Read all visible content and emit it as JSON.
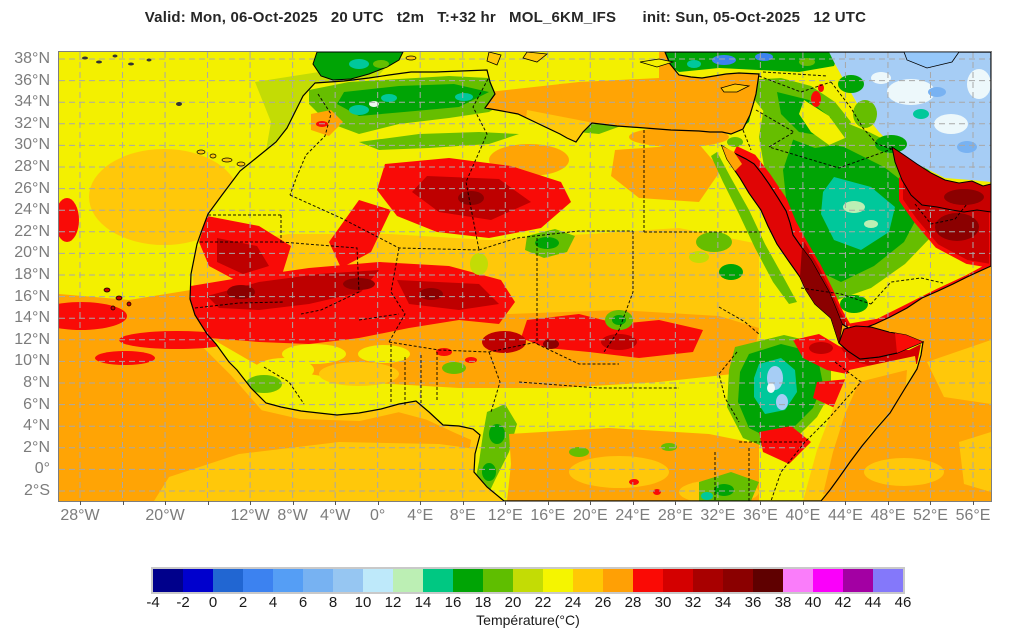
{
  "header": {
    "title": "Valid: Mon, 06-Oct-2025   20 UTC   t2m   T:+32 hr   MOL_6KM_IFS      init: Sun, 05-Oct-2025   12 UTC",
    "valid_time": "Mon, 06-Oct-2025 20 UTC",
    "variable": "t2m",
    "lead_time": "T:+32 hr",
    "model": "MOL_6KM_IFS",
    "init_time": "Sun, 05-Oct-2025 12 UTC"
  },
  "map": {
    "lat_ticks": [
      {
        "deg": 38,
        "label": "38°N"
      },
      {
        "deg": 36,
        "label": "36°N"
      },
      {
        "deg": 34,
        "label": "34°N"
      },
      {
        "deg": 32,
        "label": "32°N"
      },
      {
        "deg": 30,
        "label": "30°N"
      },
      {
        "deg": 28,
        "label": "28°N"
      },
      {
        "deg": 26,
        "label": "26°N"
      },
      {
        "deg": 24,
        "label": "24°N"
      },
      {
        "deg": 22,
        "label": "22°N"
      },
      {
        "deg": 20,
        "label": "20°N"
      },
      {
        "deg": 18,
        "label": "18°N"
      },
      {
        "deg": 16,
        "label": "16°N"
      },
      {
        "deg": 14,
        "label": "14°N"
      },
      {
        "deg": 12,
        "label": "12°N"
      },
      {
        "deg": 10,
        "label": "10°N"
      },
      {
        "deg": 8,
        "label": "8°N"
      },
      {
        "deg": 6,
        "label": "6°N"
      },
      {
        "deg": 4,
        "label": "4°N"
      },
      {
        "deg": 2,
        "label": "2°N"
      },
      {
        "deg": 0,
        "label": "0°"
      },
      {
        "deg": -2,
        "label": "2°S"
      }
    ],
    "lon_ticks": [
      {
        "deg": -28,
        "label": "28°W"
      },
      {
        "deg": -20,
        "label": "20°W"
      },
      {
        "deg": -12,
        "label": "12°W"
      },
      {
        "deg": -8,
        "label": "8°W"
      },
      {
        "deg": -4,
        "label": "4°W"
      },
      {
        "deg": 0,
        "label": "0°"
      },
      {
        "deg": 4,
        "label": "4°E"
      },
      {
        "deg": 8,
        "label": "8°E"
      },
      {
        "deg": 12,
        "label": "12°E"
      },
      {
        "deg": 16,
        "label": "16°E"
      },
      {
        "deg": 20,
        "label": "20°E"
      },
      {
        "deg": 24,
        "label": "24°E"
      },
      {
        "deg": 28,
        "label": "28°E"
      },
      {
        "deg": 32,
        "label": "32°E"
      },
      {
        "deg": 36,
        "label": "36°E"
      },
      {
        "deg": 40,
        "label": "40°E"
      },
      {
        "deg": 44,
        "label": "44°E"
      },
      {
        "deg": 48,
        "label": "48°E"
      },
      {
        "deg": 52,
        "label": "52°E"
      },
      {
        "deg": 56,
        "label": "56°E"
      }
    ],
    "grid_lon_step_deg": 4,
    "grid_lat_step_deg": 2,
    "description": "2 m temperature field over North Africa, the Sahel and the Arabian Peninsula: red/dark-red hot band across the Sahel and around the Red Sea, Persian Gulf and Oman coast; green mild areas over the Atlas, Levant, central Arabia and Ethiopian highlands; light blue cool Iranian highlands; yellow-to-orange Atlantic, Mediterranean and Indian Ocean waters; dashed country borders and gray graticule."
  },
  "colorbar": {
    "title": "Température(°C)",
    "tick_values": [
      -4,
      -2,
      0,
      2,
      4,
      6,
      8,
      10,
      12,
      14,
      16,
      18,
      20,
      22,
      24,
      26,
      28,
      30,
      32,
      34,
      36,
      38,
      40,
      42,
      44,
      46
    ],
    "segment_colors": [
      "#00008B",
      "#0000CD",
      "#2166D2",
      "#3C82F0",
      "#559EF5",
      "#77B2F2",
      "#96C6F2",
      "#BEE9FA",
      "#BCEFB4",
      "#00C882",
      "#00A405",
      "#5FBE00",
      "#C3DC05",
      "#F5F500",
      "#FFC805",
      "#FFA005",
      "#FA0A05",
      "#D40000",
      "#A80000",
      "#8B0000",
      "#5F0000",
      "#FA7DFA",
      "#FA00FA",
      "#A300A3",
      "#8478FA"
    ]
  },
  "palette": {
    "ocean": "#FFA405",
    "land_base": "#F3F000",
    "graticule": "#a8a8a8"
  }
}
